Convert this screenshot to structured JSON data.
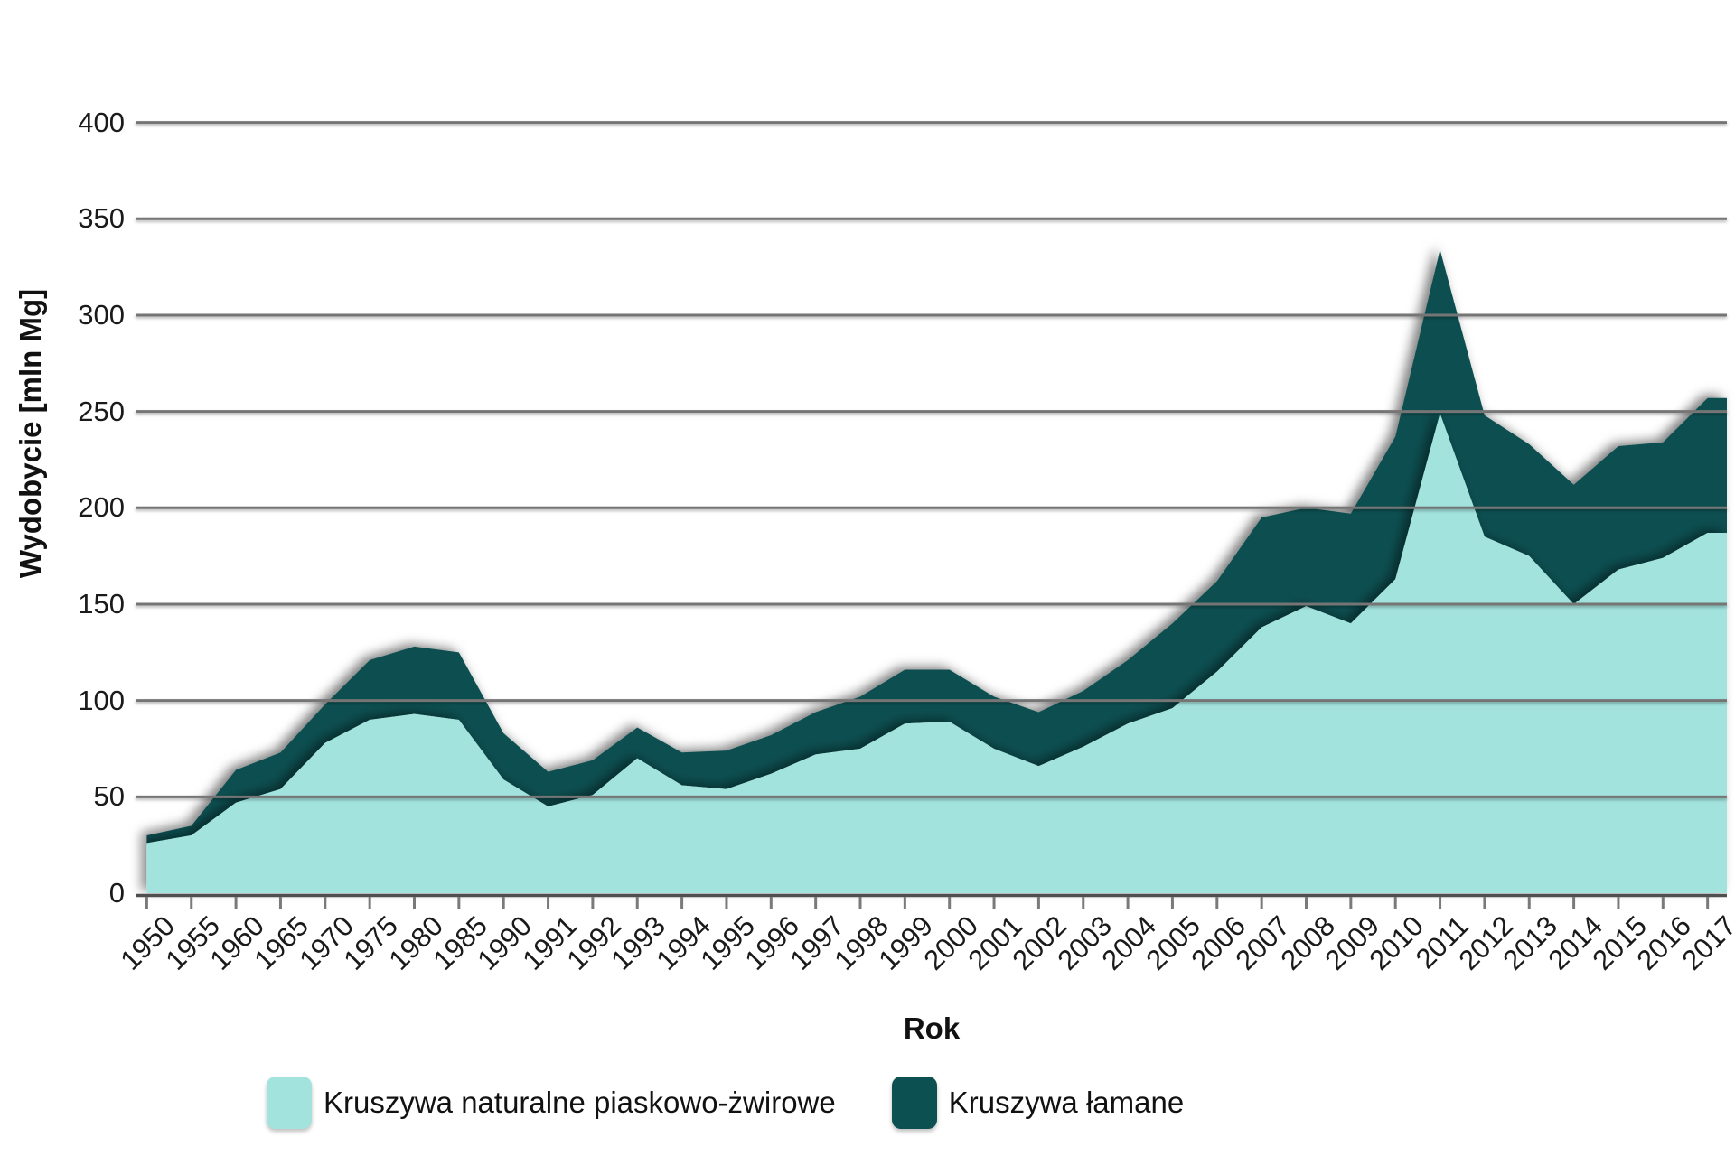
{
  "chart_data": {
    "type": "area",
    "stacked": true,
    "title": "",
    "xlabel": "Rok",
    "ylabel": "Wydobycie [mln Mg]",
    "ylim": [
      0,
      400
    ],
    "ytick_step": 50,
    "y_tick_labels": [
      "0",
      "50",
      "100",
      "150",
      "200",
      "250",
      "300",
      "350",
      "400"
    ],
    "grid": "horizontal gray lines drawn over the filled areas",
    "legend_position": "bottom",
    "categories": [
      "1950",
      "1955",
      "1960",
      "1965",
      "1970",
      "1975",
      "1980",
      "1985",
      "1990",
      "1991",
      "1992",
      "1993",
      "1994",
      "1995",
      "1996",
      "1997",
      "1998",
      "1999",
      "2000",
      "2001",
      "2002",
      "2003",
      "2004",
      "2005",
      "2006",
      "2007",
      "2008",
      "2009",
      "2010",
      "2011",
      "2012",
      "2013",
      "2014",
      "2015",
      "2016",
      "2017"
    ],
    "series": [
      {
        "name": "Kruszywa naturalne piaskowo-żwirowe",
        "color": "#a2e3de",
        "values": [
          26,
          30,
          47,
          54,
          78,
          90,
          93,
          90,
          59,
          45,
          51,
          70,
          56,
          54,
          62,
          72,
          75,
          88,
          89,
          75,
          66,
          76,
          88,
          96,
          115,
          138,
          149,
          140,
          163,
          249,
          185,
          175,
          150,
          168,
          174,
          187
        ]
      },
      {
        "name": "Kruszywa łamane",
        "color": "#0d5051",
        "values": [
          4,
          5,
          17,
          19,
          20,
          31,
          35,
          35,
          24,
          18,
          18,
          16,
          17,
          20,
          20,
          22,
          27,
          28,
          27,
          27,
          28,
          29,
          33,
          44,
          47,
          57,
          51,
          57,
          74,
          85,
          63,
          58,
          62,
          64,
          60,
          70
        ]
      }
    ],
    "stacked_totals": [
      30,
      35,
      64,
      73,
      98,
      121,
      128,
      125,
      83,
      63,
      69,
      86,
      73,
      74,
      82,
      94,
      102,
      116,
      116,
      102,
      94,
      105,
      121,
      140,
      162,
      195,
      200,
      197,
      237,
      334,
      248,
      233,
      212,
      232,
      234,
      257
    ]
  },
  "axes": {
    "x_title": "Rok",
    "y_title": "Wydobycie [mln Mg]"
  },
  "legend": {
    "items": [
      {
        "label": "Kruszywa naturalne piaskowo-żwirowe",
        "color": "#a2e3de"
      },
      {
        "label": "Kruszywa łamane",
        "color": "#0d5051"
      }
    ]
  },
  "colors": {
    "background": "#ffffff",
    "gridline": "#757575",
    "axis_line": "#4f4f4f",
    "tick_mark": "#7a7a7a",
    "text": "#1a1a1a",
    "series_light": "#a2e3de",
    "series_dark": "#0d5051"
  }
}
